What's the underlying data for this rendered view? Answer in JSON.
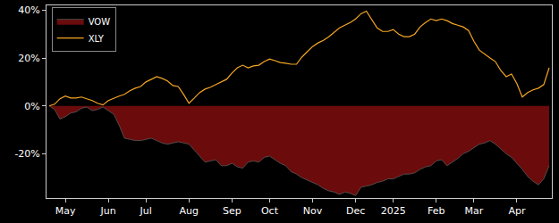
{
  "chart_data": {
    "type": "line",
    "categories": [
      null,
      null,
      null,
      "May",
      null,
      null,
      null,
      null,
      null,
      null,
      null,
      "Jun",
      null,
      null,
      null,
      null,
      null,
      null,
      "Jul",
      null,
      null,
      null,
      null,
      null,
      null,
      null,
      "Aug",
      null,
      null,
      null,
      null,
      null,
      null,
      null,
      "Sep",
      null,
      null,
      null,
      null,
      null,
      null,
      "Oct",
      null,
      null,
      null,
      null,
      null,
      null,
      null,
      "Nov",
      null,
      null,
      null,
      null,
      null,
      null,
      null,
      "Dec",
      null,
      null,
      null,
      null,
      null,
      null,
      "2025",
      null,
      null,
      null,
      null,
      null,
      null,
      null,
      "Feb",
      null,
      null,
      null,
      null,
      null,
      null,
      "Mar",
      null,
      null,
      null,
      null,
      null,
      null,
      null,
      "Apr",
      null,
      null,
      null,
      null,
      null,
      null
    ],
    "series": [
      {
        "name": "VOW",
        "type": "area",
        "color": "#5a5a5a",
        "values": [
          0,
          -1.5,
          -5.5,
          -4.5,
          -3.0,
          -2.5,
          -1.0,
          -0.5,
          -2.0,
          -1.5,
          -0.5,
          -2.0,
          -3.5,
          -8.0,
          -13.5,
          -14.0,
          -14.5,
          -14.5,
          -14.0,
          -13.5,
          -14.5,
          -15.5,
          -16.0,
          -15.5,
          -15.0,
          -15.5,
          -16.0,
          -18.5,
          -21.0,
          -23.5,
          -23.0,
          -22.5,
          -25.0,
          -25.0,
          -24.0,
          -25.5,
          -26.0,
          -23.5,
          -23.0,
          -23.5,
          -21.5,
          -21.0,
          -22.5,
          -24.0,
          -25.0,
          -27.5,
          -28.5,
          -30.0,
          -31.0,
          -32.0,
          -33.0,
          -34.5,
          -35.5,
          -36.0,
          -37.0,
          -36.0,
          -36.5,
          -37.5,
          -34.0,
          -33.5,
          -33.0,
          -32.0,
          -31.5,
          -30.5,
          -30.5,
          -29.5,
          -28.5,
          -28.5,
          -28.0,
          -26.5,
          -25.5,
          -25.0,
          -23.0,
          -22.5,
          -25.0,
          -23.5,
          -22.0,
          -20.0,
          -19.0,
          -17.5,
          -16.0,
          -15.5,
          -14.5,
          -16.0,
          -18.0,
          -20.0,
          -21.5,
          -24.0,
          -26.5,
          -29.5,
          -31.5,
          -33.0,
          -30.5,
          -25.0
        ]
      },
      {
        "name": "XLY",
        "type": "line",
        "color": "#f5a623",
        "values": [
          0,
          0.7,
          3.0,
          4.1,
          3.3,
          3.3,
          3.7,
          3.0,
          2.2,
          1.1,
          0.4,
          2.2,
          3.3,
          4.1,
          4.8,
          6.3,
          7.4,
          8.1,
          10.0,
          11.1,
          12.2,
          11.5,
          10.4,
          8.5,
          8.1,
          4.8,
          1.1,
          3.3,
          5.6,
          7.0,
          7.8,
          8.9,
          10.0,
          11.1,
          13.7,
          15.9,
          17.0,
          15.9,
          16.7,
          17.0,
          18.5,
          19.6,
          18.9,
          18.1,
          17.8,
          17.4,
          17.4,
          20.4,
          22.6,
          24.8,
          26.3,
          27.4,
          28.9,
          30.7,
          32.6,
          33.7,
          34.8,
          36.3,
          38.5,
          39.6,
          36.3,
          32.6,
          31.1,
          31.1,
          31.9,
          30.0,
          28.9,
          28.9,
          30.0,
          33.0,
          34.8,
          36.3,
          35.6,
          36.3,
          35.6,
          34.4,
          33.7,
          33.0,
          31.5,
          27.0,
          23.3,
          21.5,
          20.0,
          18.5,
          14.8,
          12.2,
          13.3,
          9.3,
          3.7,
          5.6,
          6.7,
          7.4,
          8.9,
          15.9
        ]
      }
    ],
    "ylim": [
      -38.5,
      42
    ],
    "yticks": [
      {
        "value": -20,
        "label": "-20%"
      },
      {
        "value": 0,
        "label": "0%"
      },
      {
        "value": 20,
        "label": "20%"
      },
      {
        "value": 40,
        "label": "40%"
      }
    ],
    "grid": false,
    "legend": "upper left"
  }
}
